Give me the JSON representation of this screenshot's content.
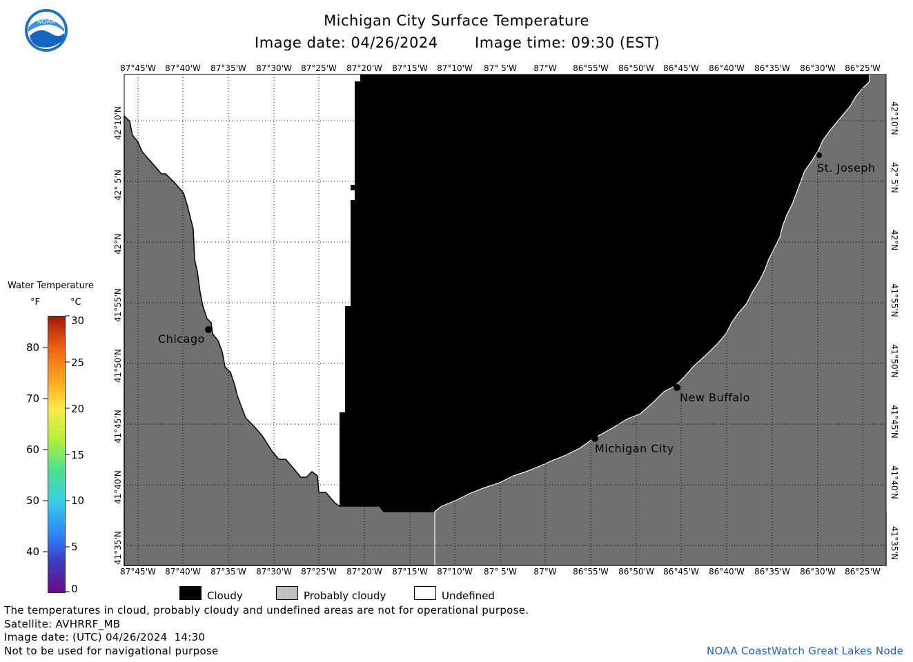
{
  "header": {
    "title": "Michigan City Surface Temperature",
    "image_date_label": "Image date: 04/26/2024",
    "image_time_label": "Image time: 09:30 (EST)"
  },
  "logo": {
    "text": "NOAA",
    "colors": {
      "ring": "#1f6fc5",
      "inner": "#ffffff",
      "wave": "#1565c0"
    }
  },
  "axes": {
    "longitudes": [
      "87°45'W",
      "87°40'W",
      "87°35'W",
      "87°30'W",
      "87°25'W",
      "87°20'W",
      "87°15'W",
      "87°10'W",
      "87° 5'W",
      "87°W",
      "86°55'W",
      "86°50'W",
      "86°45'W",
      "86°40'W",
      "86°35'W",
      "86°30'W",
      "86°25'W"
    ],
    "latitudes": [
      "42°10'N",
      "42° 5'N",
      "42°N",
      "41°55'N",
      "41°50'N",
      "41°45'N",
      "41°40'N",
      "41°35'N"
    ]
  },
  "cities": {
    "chicago": "Chicago",
    "st_joseph": "St. Joseph",
    "new_buffalo": "New Buffalo",
    "michigan_city": "Michigan City"
  },
  "colorbar": {
    "title": "Water Temperature",
    "unit_f": "°F",
    "unit_c": "°C",
    "f_ticks": [
      "80",
      "70",
      "60",
      "50",
      "40"
    ],
    "c_ticks": [
      "30",
      "25",
      "20",
      "15",
      "10",
      "5",
      "0"
    ],
    "gradient": [
      "#6a0d83",
      "#3b3cc0",
      "#2f8bff",
      "#39d0e0",
      "#4fe08a",
      "#b4f03a",
      "#ffe84a",
      "#ffa020",
      "#f06010",
      "#a01808"
    ]
  },
  "legend": {
    "cloudy": "Cloudy",
    "probably_cloudy": "Probably cloudy",
    "undefined": "Undefined",
    "colors": {
      "cloudy": "#000000",
      "probably_cloudy": "#c0c0c0",
      "undefined": "#ffffff"
    }
  },
  "footer": {
    "note": "The temperatures in cloud, probably cloudy and undefined areas are not for operational purpose.",
    "satellite": "Satellite: AVHRRF_MB",
    "utc_date": "Image date: (UTC) 04/26/2024  14:30",
    "nav_warning": "Not to be used for navigational purpose",
    "credit": "NOAA CoastWatch Great Lakes Node"
  },
  "colors": {
    "land": "#707070",
    "cloud": "#000000",
    "grid": "#000000",
    "credit": "#1f5fc5"
  }
}
